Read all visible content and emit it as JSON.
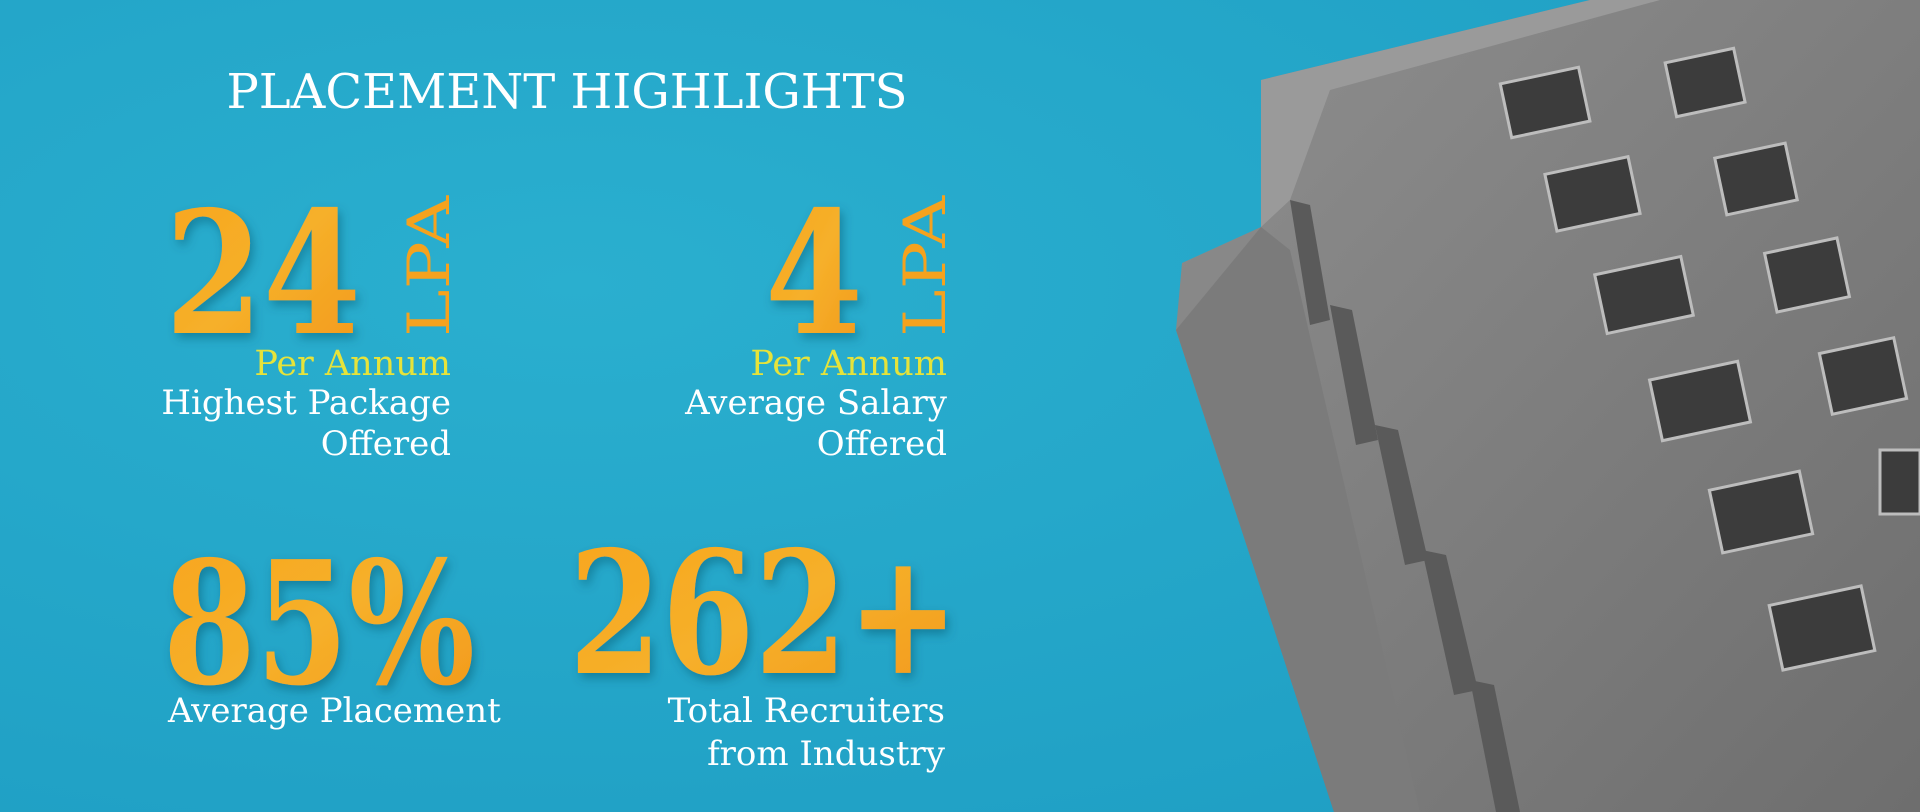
{
  "header": {
    "title": "PLACEMENT HIGHLIGHTS"
  },
  "stats": [
    {
      "value": "24",
      "unit": "LPA",
      "sub": "Per Annum",
      "label": [
        "Highest Package",
        "Offered"
      ]
    },
    {
      "value": "4",
      "unit": "LPA",
      "sub": "Per Annum",
      "label": [
        "Average Salary",
        "Offered"
      ]
    },
    {
      "value": "85%",
      "label": [
        "Average Placement"
      ]
    },
    {
      "value": "262+",
      "label": [
        "Total Recruiters",
        "from Industry"
      ]
    }
  ]
}
